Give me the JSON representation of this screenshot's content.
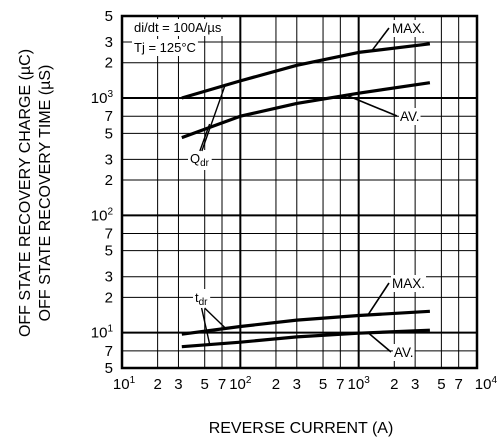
{
  "chart_data": {
    "type": "line",
    "title": "",
    "xlabel": "REVERSE CURRENT  (A)",
    "ylabel_lines": [
      "OFF STATE RECOVERY CHARGE  (µC)",
      "OFF STATE RECOVERY TIME  (µS)"
    ],
    "x_scale": "log",
    "y_scale": "log",
    "xlim": [
      10,
      10000
    ],
    "ylim": [
      5,
      5000
    ],
    "grid": true,
    "x_ticks": [
      {
        "v": 10,
        "base": "10",
        "exp": "1"
      },
      {
        "v": 20,
        "base": "2",
        "exp": ""
      },
      {
        "v": 30,
        "base": "3",
        "exp": ""
      },
      {
        "v": 50,
        "base": "5",
        "exp": ""
      },
      {
        "v": 70,
        "base": "7",
        "exp": ""
      },
      {
        "v": 100,
        "base": "10",
        "exp": "2"
      },
      {
        "v": 200,
        "base": "2",
        "exp": ""
      },
      {
        "v": 300,
        "base": "3",
        "exp": ""
      },
      {
        "v": 500,
        "base": "5",
        "exp": ""
      },
      {
        "v": 700,
        "base": "7",
        "exp": ""
      },
      {
        "v": 1000,
        "base": "10",
        "exp": "3"
      },
      {
        "v": 2000,
        "base": "2",
        "exp": ""
      },
      {
        "v": 3000,
        "base": "3",
        "exp": ""
      },
      {
        "v": 5000,
        "base": "5",
        "exp": ""
      },
      {
        "v": 7000,
        "base": "7",
        "exp": ""
      },
      {
        "v": 10000,
        "base": "10",
        "exp": "4"
      }
    ],
    "y_ticks": [
      {
        "v": 5,
        "base": "5",
        "exp": ""
      },
      {
        "v": 7,
        "base": "7",
        "exp": ""
      },
      {
        "v": 10,
        "base": "10",
        "exp": "1"
      },
      {
        "v": 20,
        "base": "2",
        "exp": ""
      },
      {
        "v": 30,
        "base": "3",
        "exp": ""
      },
      {
        "v": 50,
        "base": "5",
        "exp": ""
      },
      {
        "v": 70,
        "base": "7",
        "exp": ""
      },
      {
        "v": 100,
        "base": "10",
        "exp": "2"
      },
      {
        "v": 200,
        "base": "2",
        "exp": ""
      },
      {
        "v": 300,
        "base": "3",
        "exp": ""
      },
      {
        "v": 500,
        "base": "5",
        "exp": ""
      },
      {
        "v": 700,
        "base": "7",
        "exp": ""
      },
      {
        "v": 1000,
        "base": "10",
        "exp": "3"
      },
      {
        "v": 2000,
        "base": "2",
        "exp": ""
      },
      {
        "v": 3000,
        "base": "3",
        "exp": ""
      },
      {
        "v": 5000,
        "base": "5",
        "exp": ""
      }
    ],
    "conditions": [
      "di/dt = 100A/µs",
      "Tj = 125°C"
    ],
    "series": [
      {
        "name": "MAX.",
        "group": "Qdr",
        "x": [
          32,
          100,
          300,
          1000,
          4000
        ],
        "y": [
          1000,
          1400,
          1900,
          2450,
          2900
        ]
      },
      {
        "name": "AV.",
        "group": "Qdr",
        "x": [
          32,
          100,
          300,
          1000,
          4000
        ],
        "y": [
          460,
          700,
          900,
          1100,
          1350
        ]
      },
      {
        "name": "MAX.",
        "group": "tdr",
        "x": [
          32,
          100,
          300,
          1000,
          4000
        ],
        "y": [
          9.7,
          11.3,
          12.8,
          14.0,
          15.2
        ]
      },
      {
        "name": "AV.",
        "group": "tdr",
        "x": [
          32,
          100,
          300,
          1000,
          4000
        ],
        "y": [
          7.6,
          8.3,
          9.2,
          9.9,
          10.5
        ]
      }
    ],
    "annotations": {
      "qdr": {
        "main": "Q",
        "sub": "dr"
      },
      "tdr": {
        "main": "t",
        "sub": "dr"
      }
    }
  }
}
